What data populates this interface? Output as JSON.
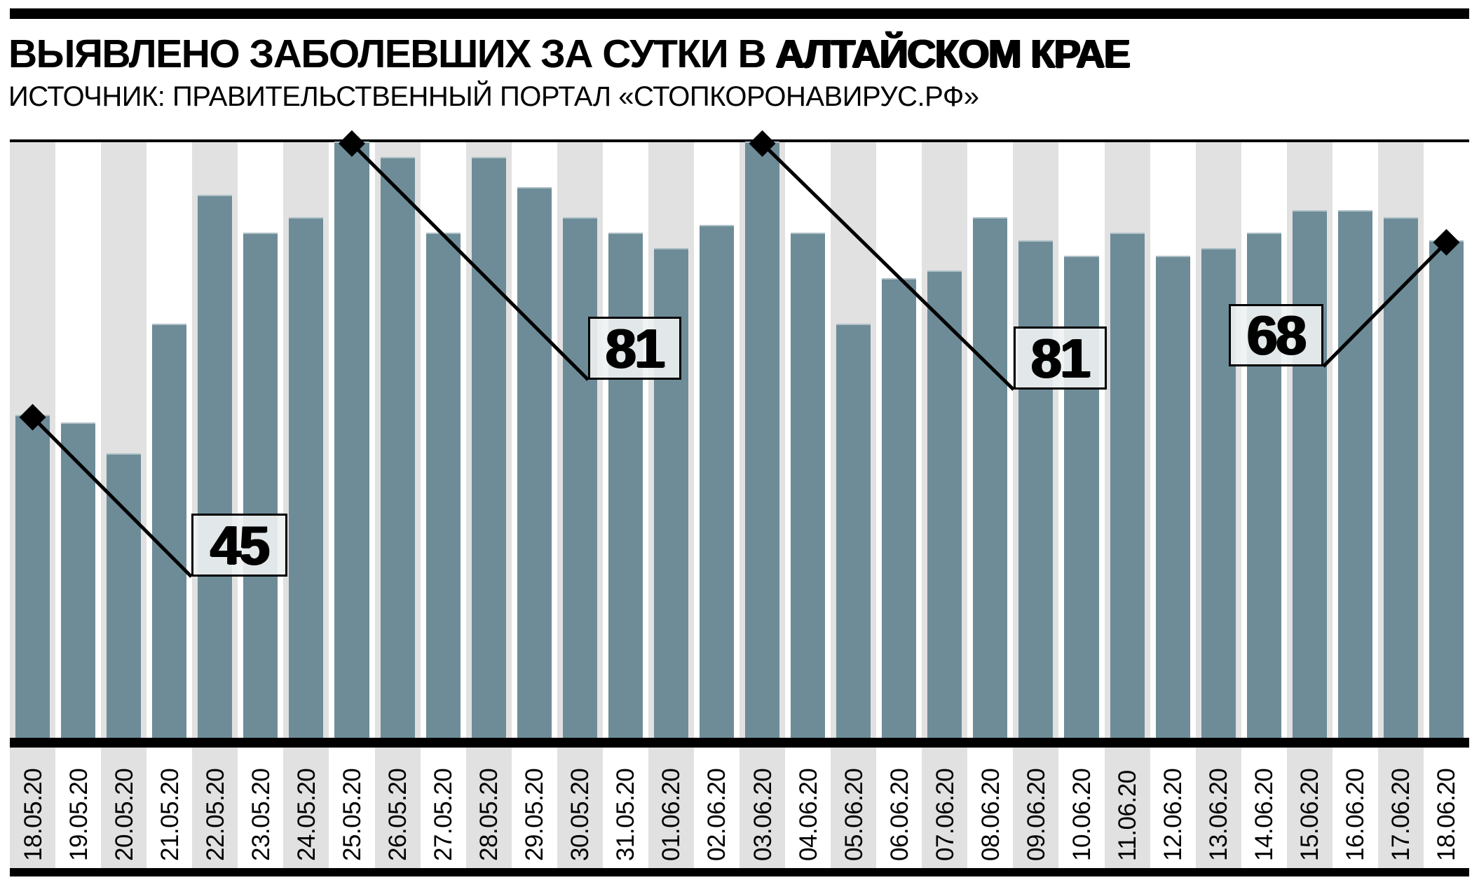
{
  "header": {
    "title_regular": "ВЫЯВЛЕНО ЗАБОЛЕВШИХ ЗА СУТКИ В ",
    "title_bold": "АЛТАЙСКОМ КРАЕ",
    "source": "ИСТОЧНИК: ПРАВИТЕЛЬСТВЕННЫЙ ПОРТАЛ «СТОПКОРОНАВИРУС.РФ»"
  },
  "chart_data": {
    "type": "bar",
    "title": "ВЫЯВЛЕНО ЗАБОЛЕВШИХ ЗА СУТКИ В АЛТАЙСКОМ КРАЕ",
    "subtitle": "ИСТОЧНИК: ПРАВИТЕЛЬСТВЕННЫЙ ПОРТАЛ «СТОПКОРОНАВИРУС.РФ»",
    "xlabel": "",
    "ylabel": "",
    "ylim": [
      0,
      81
    ],
    "grid": false,
    "legend": "none",
    "categories": [
      "18.05.20",
      "19.05.20",
      "20.05.20",
      "21.05.20",
      "22.05.20",
      "23.05.20",
      "24.05.20",
      "25.05.20",
      "26.05.20",
      "27.05.20",
      "28.05.20",
      "29.05.20",
      "30.05.20",
      "31.05.20",
      "01.06.20",
      "02.06.20",
      "03.06.20",
      "04.06.20",
      "05.06.20",
      "06.06.20",
      "07.06.20",
      "08.06.20",
      "09.06.20",
      "10.06.20",
      "11.06.20",
      "12.06.20",
      "13.06.20",
      "14.06.20",
      "15.06.20",
      "16.06.20",
      "17.06.20",
      "18.06.20"
    ],
    "values": [
      45,
      44,
      40,
      57,
      74,
      69,
      71,
      81,
      79,
      69,
      79,
      75,
      71,
      69,
      67,
      70,
      81,
      69,
      57,
      63,
      64,
      71,
      68,
      66,
      69,
      66,
      67,
      69,
      72,
      72,
      71,
      68
    ],
    "annotations": [
      {
        "label": "45",
        "date": "18.05.20",
        "value": 45
      },
      {
        "label": "81",
        "date": "25.05.20",
        "value": 81
      },
      {
        "label": "81",
        "date": "03.06.20",
        "value": 81
      },
      {
        "label": "68",
        "date": "18.06.20",
        "value": 68
      }
    ],
    "colors": {
      "bar": "#6d8c98",
      "band": "#e1e1e1",
      "background": "#ffffff",
      "annotation_fill": "#eef2f2",
      "line": "#000000"
    }
  }
}
